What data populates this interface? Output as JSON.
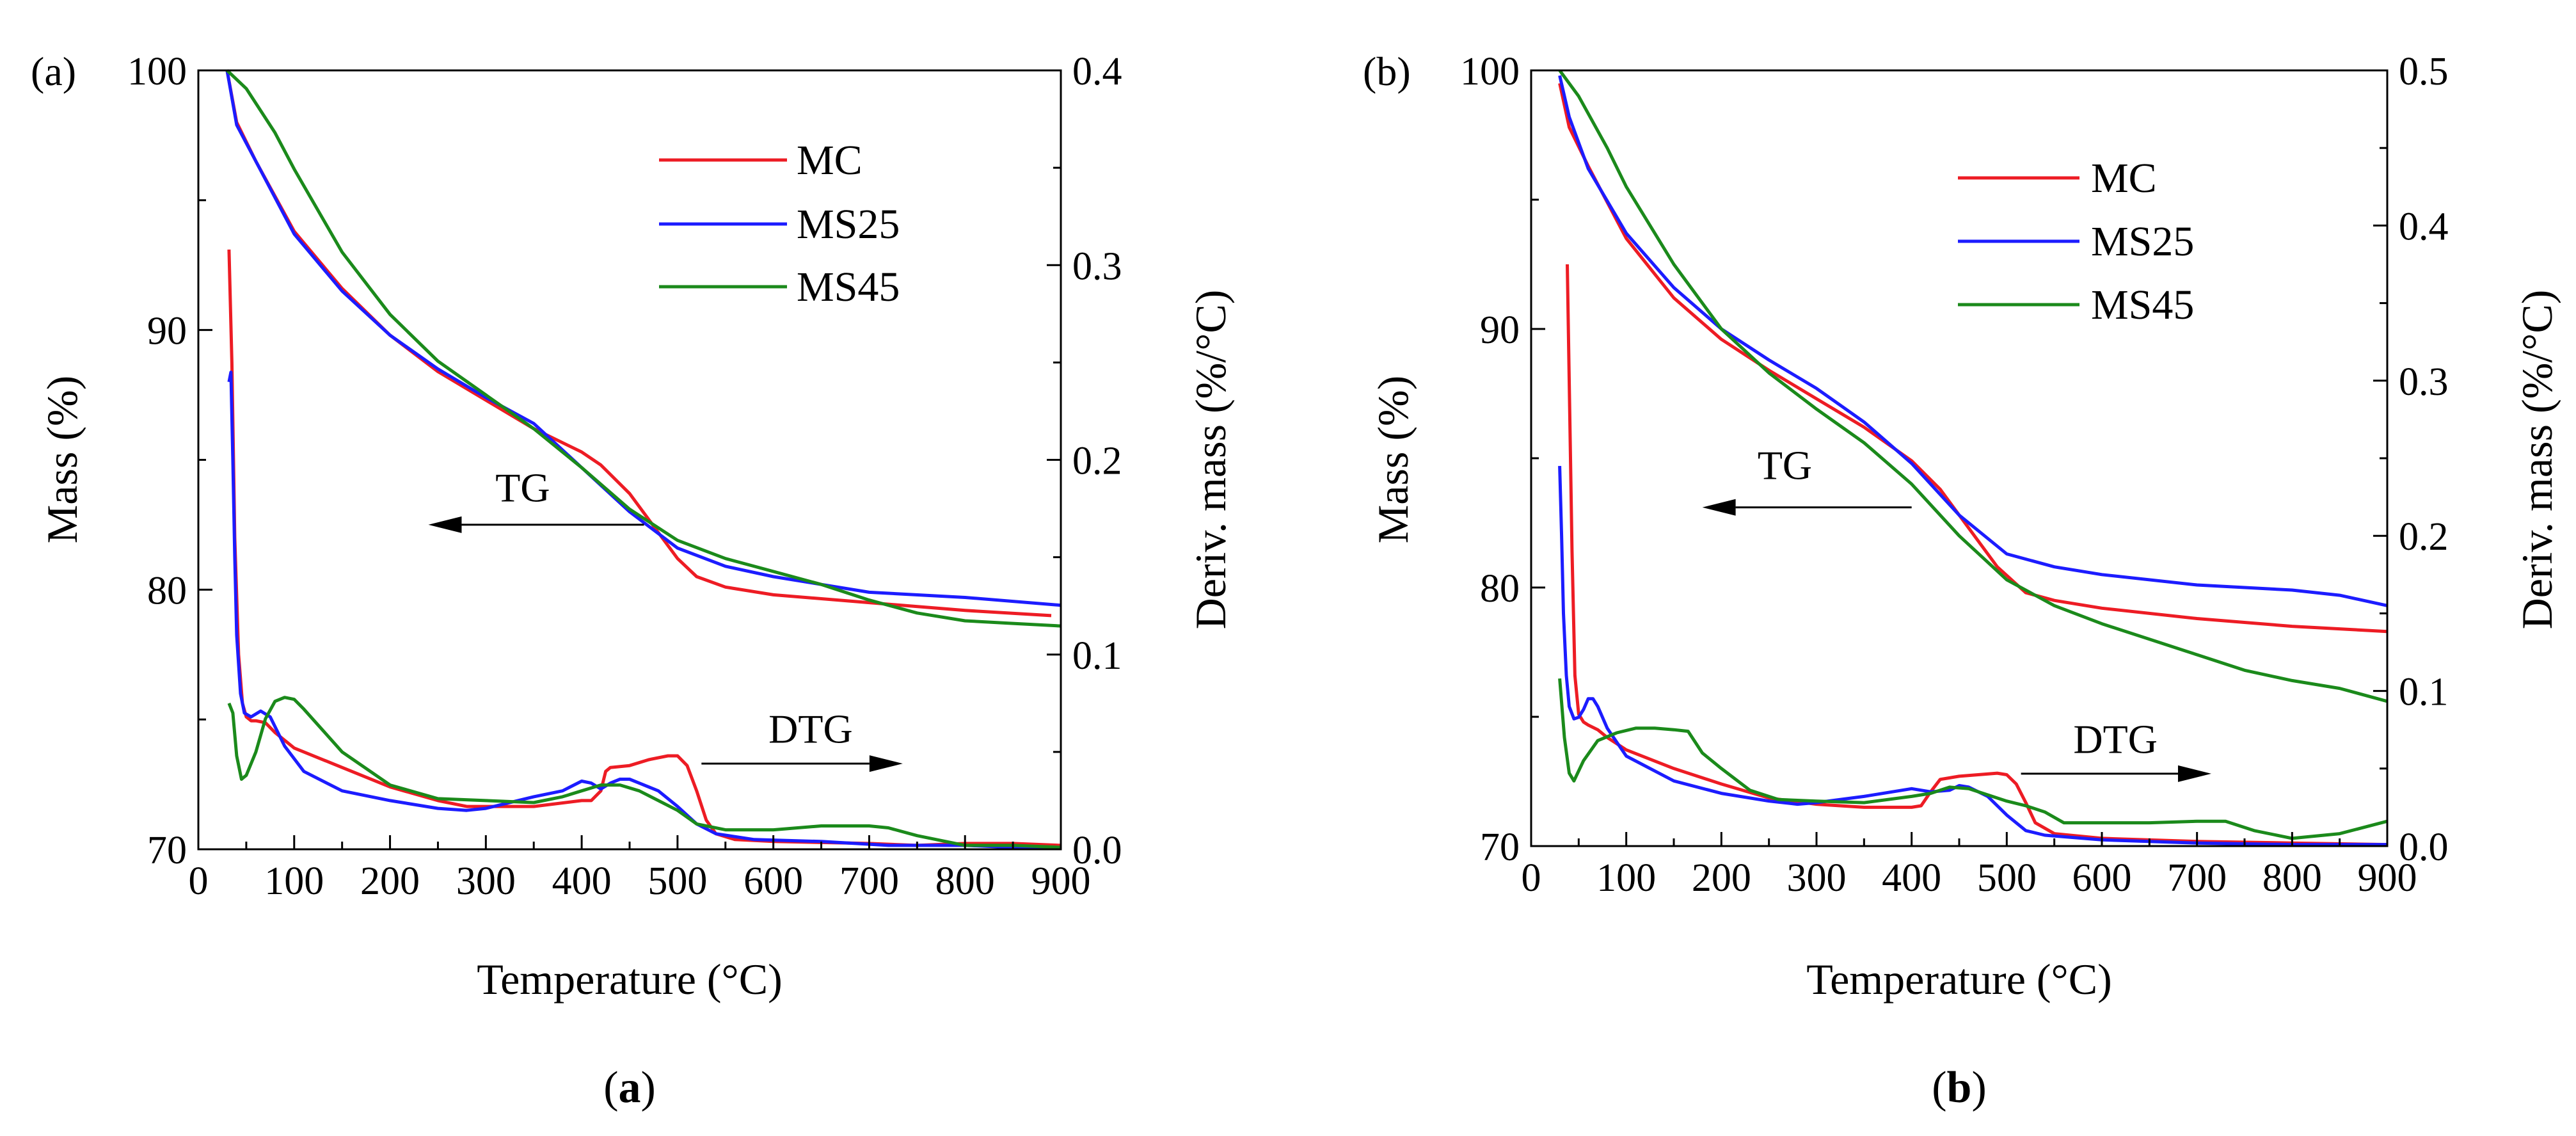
{
  "chart_data": [
    {
      "type": "line",
      "panel_tag": "(a)",
      "caption": "a",
      "xlabel": "Temperature (°C)",
      "ylabel": "Mass (%)",
      "y2label": "Deriv. mass (%/°C)",
      "xlim": [
        0,
        900
      ],
      "ylim": [
        70,
        100
      ],
      "y2lim": [
        0,
        0.4
      ],
      "xticks": [
        "0",
        "100",
        "200",
        "300",
        "400",
        "500",
        "600",
        "700",
        "800",
        "900"
      ],
      "yticks": [
        "70",
        "80",
        "90",
        "100"
      ],
      "y2ticks": [
        "0.0",
        "0.1",
        "0.2",
        "0.3",
        "0.4"
      ],
      "legend_position": "top-right",
      "annotations": [
        {
          "label": "TG",
          "direction": "left",
          "x_from": 465,
          "x_to": 240,
          "y": 82.5,
          "text_x": 310,
          "text_y": 83.4
        },
        {
          "label": "DTG",
          "direction": "right",
          "x_from": 525,
          "x_to": 735,
          "y": 73.3,
          "text_x": 595,
          "text_y": 74.1
        }
      ],
      "tg_series": [
        {
          "name": "MC",
          "color": "#ed1c24",
          "x": [
            30,
            40,
            60,
            100,
            150,
            200,
            250,
            300,
            350,
            400,
            420,
            450,
            480,
            500,
            520,
            550,
            600,
            700,
            800,
            890
          ],
          "y": [
            100,
            98.0,
            96.5,
            93.8,
            91.6,
            89.8,
            88.4,
            87.3,
            86.2,
            85.3,
            84.8,
            83.7,
            82.2,
            81.2,
            80.5,
            80.1,
            79.8,
            79.5,
            79.2,
            79.0
          ]
        },
        {
          "name": "MS25",
          "color": "#1c1cff",
          "x": [
            30,
            40,
            60,
            100,
            150,
            200,
            250,
            300,
            350,
            400,
            450,
            500,
            550,
            600,
            700,
            800,
            900
          ],
          "y": [
            100,
            97.9,
            96.5,
            93.7,
            91.5,
            89.8,
            88.5,
            87.4,
            86.4,
            84.7,
            83.0,
            81.6,
            80.9,
            80.5,
            79.9,
            79.7,
            79.4
          ]
        },
        {
          "name": "MS45",
          "color": "#1b8a1b",
          "x": [
            30,
            50,
            80,
            100,
            150,
            200,
            250,
            300,
            350,
            400,
            450,
            500,
            550,
            600,
            650,
            700,
            750,
            800,
            850,
            900
          ],
          "y": [
            100,
            99.3,
            97.6,
            96.2,
            93.0,
            90.6,
            88.8,
            87.5,
            86.2,
            84.7,
            83.1,
            81.9,
            81.2,
            80.7,
            80.2,
            79.6,
            79.1,
            78.8,
            78.7,
            78.6
          ]
        }
      ],
      "dtg_series": [
        {
          "name": "MC",
          "color": "#ed1c24",
          "x": [
            32,
            35,
            38,
            42,
            46,
            50,
            55,
            60,
            70,
            80,
            100,
            150,
            200,
            250,
            280,
            300,
            350,
            400,
            410,
            420,
            425,
            430,
            450,
            470,
            490,
            500,
            510,
            520,
            530,
            540,
            560,
            600,
            700,
            750,
            800,
            850,
            900
          ],
          "y": [
            0.308,
            0.25,
            0.16,
            0.1,
            0.075,
            0.068,
            0.066,
            0.066,
            0.065,
            0.06,
            0.052,
            0.042,
            0.032,
            0.025,
            0.022,
            0.022,
            0.022,
            0.025,
            0.025,
            0.03,
            0.04,
            0.042,
            0.043,
            0.046,
            0.048,
            0.048,
            0.043,
            0.03,
            0.015,
            0.008,
            0.005,
            0.004,
            0.003,
            0.002,
            0.003,
            0.003,
            0.002
          ]
        },
        {
          "name": "MS25",
          "color": "#1c1cff",
          "x": [
            32,
            34,
            36,
            38,
            40,
            44,
            48,
            55,
            65,
            75,
            90,
            110,
            150,
            200,
            250,
            280,
            300,
            350,
            380,
            400,
            410,
            420,
            430,
            440,
            450,
            460,
            480,
            500,
            520,
            540,
            580,
            650,
            720,
            800,
            850,
            900
          ],
          "y": [
            0.24,
            0.245,
            0.2,
            0.15,
            0.11,
            0.08,
            0.07,
            0.068,
            0.071,
            0.068,
            0.053,
            0.04,
            0.03,
            0.025,
            0.021,
            0.02,
            0.021,
            0.027,
            0.03,
            0.035,
            0.034,
            0.031,
            0.034,
            0.036,
            0.036,
            0.034,
            0.03,
            0.022,
            0.013,
            0.008,
            0.005,
            0.004,
            0.002,
            0.002,
            0.001,
            0.001
          ]
        },
        {
          "name": "MS45",
          "color": "#1b8a1b",
          "x": [
            32,
            36,
            40,
            45,
            50,
            60,
            70,
            80,
            90,
            100,
            110,
            150,
            200,
            250,
            300,
            350,
            380,
            400,
            420,
            440,
            460,
            480,
            500,
            520,
            550,
            600,
            650,
            700,
            720,
            750,
            800,
            850,
            900
          ],
          "y": [
            0.075,
            0.07,
            0.048,
            0.036,
            0.038,
            0.05,
            0.067,
            0.076,
            0.078,
            0.077,
            0.072,
            0.05,
            0.033,
            0.026,
            0.025,
            0.024,
            0.027,
            0.03,
            0.033,
            0.033,
            0.03,
            0.025,
            0.02,
            0.013,
            0.01,
            0.01,
            0.012,
            0.012,
            0.011,
            0.007,
            0.002,
            0.002,
            0.001
          ]
        }
      ]
    },
    {
      "type": "line",
      "panel_tag": "(b)",
      "caption": "b",
      "xlabel": "Temperature (°C)",
      "ylabel": "Mass (%)",
      "y2label": "Deriv. mass (%/°C)",
      "xlim": [
        0,
        900
      ],
      "ylim": [
        70,
        100
      ],
      "y2lim": [
        0,
        0.5
      ],
      "xticks": [
        "0",
        "100",
        "200",
        "300",
        "400",
        "500",
        "600",
        "700",
        "800",
        "900"
      ],
      "yticks": [
        "70",
        "80",
        "90",
        "100"
      ],
      "y2ticks": [
        "0.0",
        "0.1",
        "0.2",
        "0.3",
        "0.4",
        "0.5"
      ],
      "legend_position": "top-right",
      "annotations": [
        {
          "label": "TG",
          "direction": "left",
          "x_from": 400,
          "x_to": 180,
          "y": 83.1,
          "text_x": 238,
          "text_y": 84.2
        },
        {
          "label": "DTG",
          "direction": "right",
          "x_from": 515,
          "x_to": 715,
          "y": 72.8,
          "text_x": 570,
          "text_y": 73.6
        }
      ],
      "tg_series": [
        {
          "name": "MC",
          "color": "#ed1c24",
          "x": [
            30,
            40,
            60,
            100,
            150,
            200,
            250,
            300,
            350,
            400,
            430,
            460,
            490,
            520,
            550,
            600,
            700,
            800,
            900
          ],
          "y": [
            99.5,
            97.8,
            96.3,
            93.5,
            91.2,
            89.6,
            88.4,
            87.3,
            86.2,
            84.9,
            83.8,
            82.3,
            80.8,
            79.8,
            79.5,
            79.2,
            78.8,
            78.5,
            78.3
          ]
        },
        {
          "name": "MS25",
          "color": "#1c1cff",
          "x": [
            30,
            40,
            60,
            100,
            150,
            200,
            250,
            300,
            350,
            400,
            450,
            500,
            550,
            600,
            700,
            800,
            850,
            900
          ],
          "y": [
            99.8,
            98.2,
            96.2,
            93.7,
            91.6,
            90.0,
            88.8,
            87.7,
            86.4,
            84.8,
            82.8,
            81.3,
            80.8,
            80.5,
            80.1,
            79.9,
            79.7,
            79.3
          ]
        },
        {
          "name": "MS45",
          "color": "#1b8a1b",
          "x": [
            30,
            50,
            80,
            100,
            150,
            200,
            250,
            300,
            350,
            400,
            450,
            500,
            550,
            600,
            650,
            700,
            750,
            800,
            850,
            900
          ],
          "y": [
            100,
            99.0,
            97.0,
            95.5,
            92.5,
            90.0,
            88.3,
            86.9,
            85.6,
            84.0,
            82.0,
            80.3,
            79.3,
            78.6,
            78.0,
            77.4,
            76.8,
            76.4,
            76.1,
            75.6
          ]
        }
      ],
      "dtg_series": [
        {
          "name": "MC",
          "color": "#ed1c24",
          "x": [
            38,
            40,
            43,
            46,
            50,
            55,
            60,
            70,
            80,
            100,
            150,
            200,
            250,
            300,
            350,
            400,
            410,
            420,
            430,
            450,
            470,
            490,
            500,
            510,
            520,
            530,
            550,
            600,
            700,
            800,
            900
          ],
          "y": [
            0.375,
            0.3,
            0.19,
            0.11,
            0.085,
            0.08,
            0.078,
            0.075,
            0.07,
            0.062,
            0.05,
            0.04,
            0.031,
            0.027,
            0.025,
            0.025,
            0.026,
            0.035,
            0.043,
            0.045,
            0.046,
            0.047,
            0.046,
            0.04,
            0.028,
            0.015,
            0.008,
            0.005,
            0.003,
            0.002,
            0.001
          ]
        },
        {
          "name": "MS25",
          "color": "#1c1cff",
          "x": [
            30,
            32,
            34,
            37,
            40,
            45,
            50,
            55,
            60,
            65,
            70,
            80,
            100,
            150,
            200,
            250,
            280,
            300,
            350,
            400,
            420,
            440,
            450,
            460,
            480,
            500,
            520,
            540,
            600,
            700,
            800,
            900
          ],
          "y": [
            0.245,
            0.2,
            0.15,
            0.11,
            0.09,
            0.082,
            0.083,
            0.088,
            0.095,
            0.095,
            0.09,
            0.076,
            0.058,
            0.042,
            0.034,
            0.029,
            0.027,
            0.028,
            0.032,
            0.037,
            0.035,
            0.036,
            0.039,
            0.038,
            0.032,
            0.02,
            0.01,
            0.007,
            0.004,
            0.002,
            0.001,
            0.001
          ]
        },
        {
          "name": "MS45",
          "color": "#1b8a1b",
          "x": [
            30,
            35,
            40,
            45,
            55,
            70,
            90,
            110,
            130,
            150,
            165,
            180,
            200,
            230,
            260,
            300,
            350,
            400,
            420,
            440,
            460,
            480,
            500,
            520,
            540,
            560,
            600,
            650,
            700,
            730,
            760,
            800,
            850,
            900
          ],
          "y": [
            0.108,
            0.07,
            0.047,
            0.042,
            0.055,
            0.068,
            0.073,
            0.076,
            0.076,
            0.075,
            0.074,
            0.06,
            0.05,
            0.036,
            0.03,
            0.029,
            0.028,
            0.032,
            0.034,
            0.038,
            0.037,
            0.033,
            0.029,
            0.026,
            0.022,
            0.015,
            0.015,
            0.015,
            0.016,
            0.016,
            0.01,
            0.005,
            0.008,
            0.016
          ]
        }
      ]
    }
  ]
}
